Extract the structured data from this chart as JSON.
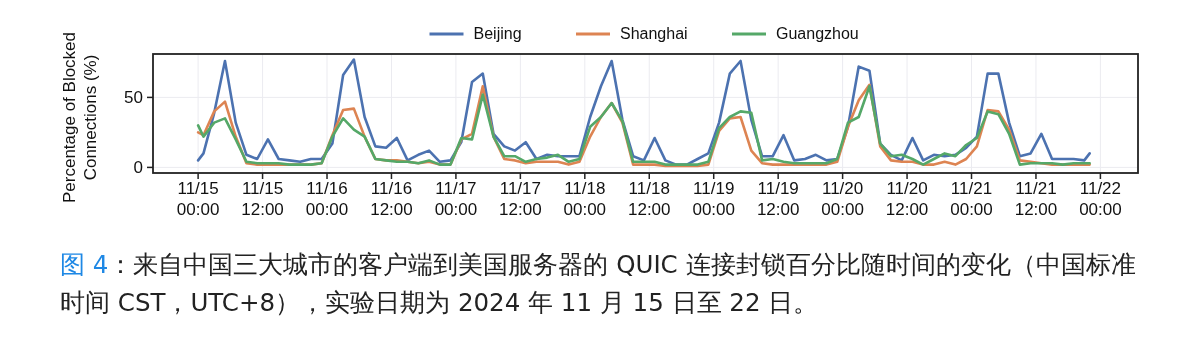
{
  "chart_data": {
    "type": "line",
    "ylabel": "Percentage of Blocked Connections (%)",
    "annotations": [
      "图 4",
      "：来自中国三大城市的客户端到美国服务器的 QUIC 连接封锁百分比随时间的变化（中国标准时间 CST，UTC+8），实验日期为 2024 年 11 月 15 日至 22 日。"
    ],
    "x": [
      "2024-11-15T00:00",
      "2024-11-15T01:00",
      "2024-11-15T03:00",
      "2024-11-15T05:00",
      "2024-11-15T07:00",
      "2024-11-15T09:00",
      "2024-11-15T11:00",
      "2024-11-15T13:00",
      "2024-11-15T15:00",
      "2024-11-15T17:00",
      "2024-11-15T19:00",
      "2024-11-15T21:00",
      "2024-11-15T23:00",
      "2024-11-16T01:00",
      "2024-11-16T03:00",
      "2024-11-16T05:00",
      "2024-11-16T07:00",
      "2024-11-16T09:00",
      "2024-11-16T11:00",
      "2024-11-16T13:00",
      "2024-11-16T15:00",
      "2024-11-16T17:00",
      "2024-11-16T19:00",
      "2024-11-16T21:00",
      "2024-11-16T23:00",
      "2024-11-17T01:00",
      "2024-11-17T03:00",
      "2024-11-17T05:00",
      "2024-11-17T07:00",
      "2024-11-17T09:00",
      "2024-11-17T11:00",
      "2024-11-17T13:00",
      "2024-11-17T15:00",
      "2024-11-17T17:00",
      "2024-11-17T19:00",
      "2024-11-17T21:00",
      "2024-11-17T23:00",
      "2024-11-18T01:00",
      "2024-11-18T03:00",
      "2024-11-18T05:00",
      "2024-11-18T07:00",
      "2024-11-18T09:00",
      "2024-11-18T11:00",
      "2024-11-18T13:00",
      "2024-11-18T15:00",
      "2024-11-18T17:00",
      "2024-11-18T19:00",
      "2024-11-18T21:00",
      "2024-11-18T23:00",
      "2024-11-19T01:00",
      "2024-11-19T03:00",
      "2024-11-19T05:00",
      "2024-11-19T07:00",
      "2024-11-19T09:00",
      "2024-11-19T11:00",
      "2024-11-19T13:00",
      "2024-11-19T15:00",
      "2024-11-19T17:00",
      "2024-11-19T19:00",
      "2024-11-19T21:00",
      "2024-11-19T23:00",
      "2024-11-20T01:00",
      "2024-11-20T03:00",
      "2024-11-20T05:00",
      "2024-11-20T07:00",
      "2024-11-20T09:00",
      "2024-11-20T11:00",
      "2024-11-20T13:00",
      "2024-11-20T15:00",
      "2024-11-20T17:00",
      "2024-11-20T19:00",
      "2024-11-20T21:00",
      "2024-11-20T23:00",
      "2024-11-21T01:00",
      "2024-11-21T03:00",
      "2024-11-21T05:00",
      "2024-11-21T07:00",
      "2024-11-21T09:00",
      "2024-11-21T11:00",
      "2024-11-21T13:00",
      "2024-11-21T15:00",
      "2024-11-21T17:00",
      "2024-11-21T19:00",
      "2024-11-21T21:00",
      "2024-11-21T22:00"
    ],
    "series": [
      {
        "name": "Beijing",
        "color": "#4c72b0",
        "values": [
          5,
          10,
          39,
          76,
          32,
          9,
          6,
          20,
          6,
          5,
          4,
          6,
          6,
          17,
          66,
          77,
          36,
          15,
          14,
          21,
          5,
          9,
          12,
          4,
          5,
          18,
          61,
          67,
          24,
          15,
          12,
          18,
          6,
          9,
          8,
          8,
          8,
          36,
          58,
          76,
          34,
          8,
          5,
          21,
          5,
          2,
          2,
          6,
          10,
          32,
          67,
          76,
          34,
          8,
          8,
          23,
          5,
          6,
          9,
          5,
          6,
          29,
          72,
          69,
          17,
          9,
          5,
          21,
          5,
          9,
          8,
          9,
          14,
          22,
          67,
          67,
          32,
          8,
          10,
          24,
          6,
          6,
          6,
          5,
          10
        ]
      },
      {
        "name": "Shanghai",
        "color": "#dd8452",
        "values": [
          25,
          23,
          40,
          47,
          22,
          3,
          2,
          2,
          2,
          2,
          2,
          2,
          3,
          23,
          41,
          42,
          22,
          6,
          5,
          5,
          4,
          3,
          4,
          2,
          2,
          20,
          24,
          58,
          22,
          6,
          5,
          3,
          4,
          4,
          4,
          2,
          4,
          22,
          36,
          46,
          32,
          2,
          2,
          2,
          1,
          1,
          1,
          1,
          2,
          26,
          35,
          36,
          12,
          3,
          2,
          2,
          2,
          2,
          2,
          2,
          4,
          29,
          48,
          59,
          15,
          5,
          4,
          4,
          2,
          2,
          4,
          2,
          6,
          15,
          41,
          40,
          27,
          5,
          4,
          3,
          2,
          2,
          2,
          2,
          2
        ]
      },
      {
        "name": "Guangzhou",
        "color": "#55a868",
        "values": [
          30,
          22,
          32,
          35,
          20,
          4,
          3,
          3,
          3,
          2,
          2,
          2,
          3,
          22,
          35,
          27,
          22,
          6,
          5,
          4,
          4,
          3,
          5,
          2,
          2,
          21,
          20,
          52,
          22,
          8,
          8,
          4,
          6,
          7,
          9,
          4,
          6,
          29,
          36,
          46,
          33,
          4,
          4,
          4,
          2,
          2,
          2,
          2,
          4,
          28,
          36,
          40,
          39,
          5,
          6,
          4,
          3,
          3,
          3,
          3,
          6,
          32,
          36,
          58,
          17,
          8,
          9,
          6,
          2,
          6,
          10,
          8,
          16,
          21,
          40,
          38,
          24,
          2,
          3,
          3,
          3,
          2,
          3,
          3,
          3
        ]
      }
    ],
    "xlim": [
      "2024-11-14T15:36",
      "2024-11-22T07:00"
    ],
    "xticks": [
      {
        "value": "2024-11-15T00:00",
        "label": "11/15 00:00"
      },
      {
        "value": "2024-11-15T12:00",
        "label": "11/15 12:00"
      },
      {
        "value": "2024-11-16T00:00",
        "label": "11/16 00:00"
      },
      {
        "value": "2024-11-16T12:00",
        "label": "11/16 12:00"
      },
      {
        "value": "2024-11-17T00:00",
        "label": "11/17 00:00"
      },
      {
        "value": "2024-11-17T12:00",
        "label": "11/17 12:00"
      },
      {
        "value": "2024-11-18T00:00",
        "label": "11/18 00:00"
      },
      {
        "value": "2024-11-18T12:00",
        "label": "11/18 12:00"
      },
      {
        "value": "2024-11-19T00:00",
        "label": "11/19 00:00"
      },
      {
        "value": "2024-11-19T12:00",
        "label": "11/19 12:00"
      },
      {
        "value": "2024-11-20T00:00",
        "label": "11/20 00:00"
      },
      {
        "value": "2024-11-20T12:00",
        "label": "11/20 12:00"
      },
      {
        "value": "2024-11-21T00:00",
        "label": "11/21 00:00"
      },
      {
        "value": "2024-11-21T12:00",
        "label": "11/21 12:00"
      },
      {
        "value": "2024-11-22T00:00",
        "label": "11/22 00:00"
      }
    ],
    "ylim": [
      -4,
      81
    ],
    "yticks": [
      0,
      50
    ],
    "grid": true,
    "legend": "top",
    "marker": "none",
    "line_style": "solid"
  }
}
